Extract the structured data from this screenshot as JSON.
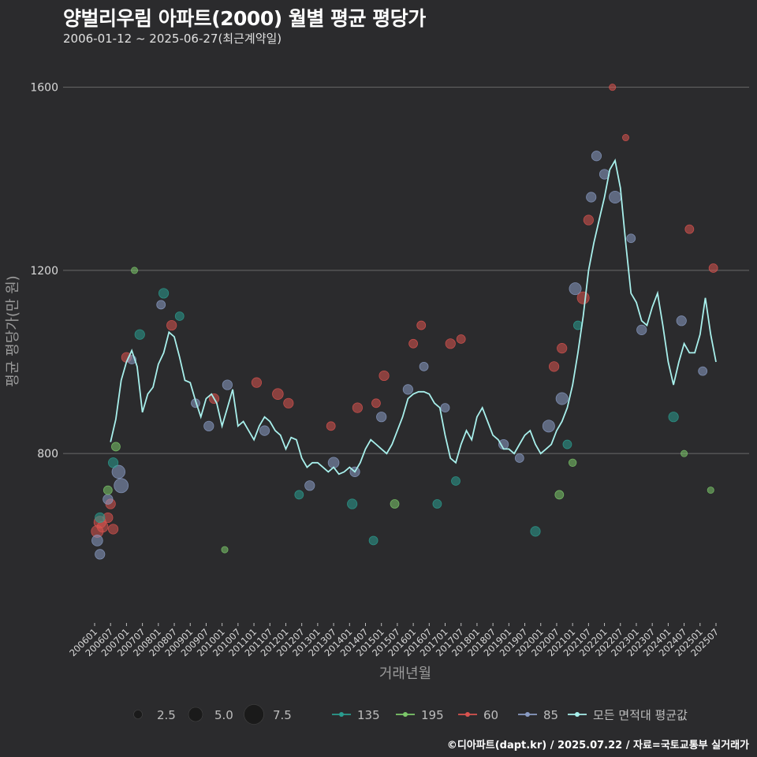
{
  "header": {
    "title": "양벌리우림 아파트(2000) 월별 평균 평당가",
    "subtitle": "2006-01-12 ~ 2025-06-27(최근계약일)"
  },
  "source": "©디아파트(dapt.kr) / 2025.07.22 / 자료=국토교통부 실거래가",
  "colors": {
    "background": "#2b2b2d",
    "grid": "#6a6a6a",
    "series_135": "#2a9d8f",
    "series_195": "#7cc86a",
    "series_60": "#d9534f",
    "series_85": "#8a9cc4",
    "series_all": "#a8f0ec"
  },
  "chart_data": {
    "type": "line",
    "xlabel": "거래년월",
    "ylabel": "평균 평당가(만 원)",
    "ylim": [
      430,
      1670
    ],
    "yticks": [
      800,
      1200,
      1600
    ],
    "x_start": "2006-01",
    "x_end": "2025-07",
    "xticks": [
      "200601",
      "200607",
      "200701",
      "200707",
      "200801",
      "200807",
      "200901",
      "200907",
      "201001",
      "201007",
      "201101",
      "201107",
      "201201",
      "201207",
      "201301",
      "201307",
      "201401",
      "201407",
      "201501",
      "201507",
      "201601",
      "201607",
      "201701",
      "201707",
      "201801",
      "201807",
      "201901",
      "201907",
      "202001",
      "202007",
      "202101",
      "202107",
      "202201",
      "202207",
      "202301",
      "202307",
      "202401",
      "202407",
      "202501",
      "202507"
    ],
    "size_legend": {
      "title": "",
      "values": [
        2.5,
        5.0,
        7.5
      ]
    },
    "series_legend": [
      "135",
      "195",
      "60",
      "85",
      "모든 면적대 평균값"
    ],
    "avg_line": [
      [
        "2006-07",
        825
      ],
      [
        "2006-09",
        875
      ],
      [
        "2006-11",
        960
      ],
      [
        "2007-01",
        1000
      ],
      [
        "2007-03",
        1025
      ],
      [
        "2007-05",
        990
      ],
      [
        "2007-07",
        890
      ],
      [
        "2007-09",
        930
      ],
      [
        "2007-11",
        945
      ],
      [
        "2008-01",
        995
      ],
      [
        "2008-03",
        1020
      ],
      [
        "2008-05",
        1065
      ],
      [
        "2008-07",
        1055
      ],
      [
        "2008-09",
        1010
      ],
      [
        "2008-11",
        960
      ],
      [
        "2009-01",
        955
      ],
      [
        "2009-03",
        915
      ],
      [
        "2009-05",
        880
      ],
      [
        "2009-07",
        920
      ],
      [
        "2009-09",
        930
      ],
      [
        "2009-11",
        910
      ],
      [
        "2010-01",
        860
      ],
      [
        "2010-03",
        900
      ],
      [
        "2010-05",
        940
      ],
      [
        "2010-07",
        860
      ],
      [
        "2010-09",
        870
      ],
      [
        "2010-11",
        850
      ],
      [
        "2011-01",
        830
      ],
      [
        "2011-03",
        860
      ],
      [
        "2011-05",
        880
      ],
      [
        "2011-07",
        870
      ],
      [
        "2011-09",
        850
      ],
      [
        "2011-11",
        840
      ],
      [
        "2012-01",
        810
      ],
      [
        "2012-03",
        835
      ],
      [
        "2012-05",
        830
      ],
      [
        "2012-07",
        790
      ],
      [
        "2012-09",
        770
      ],
      [
        "2012-11",
        780
      ],
      [
        "2013-01",
        780
      ],
      [
        "2013-03",
        770
      ],
      [
        "2013-05",
        760
      ],
      [
        "2013-07",
        770
      ],
      [
        "2013-09",
        755
      ],
      [
        "2013-11",
        760
      ],
      [
        "2014-01",
        770
      ],
      [
        "2014-03",
        760
      ],
      [
        "2014-05",
        780
      ],
      [
        "2014-07",
        810
      ],
      [
        "2014-09",
        830
      ],
      [
        "2014-11",
        820
      ],
      [
        "2015-01",
        810
      ],
      [
        "2015-03",
        800
      ],
      [
        "2015-05",
        820
      ],
      [
        "2015-07",
        850
      ],
      [
        "2015-09",
        880
      ],
      [
        "2015-11",
        920
      ],
      [
        "2016-01",
        930
      ],
      [
        "2016-03",
        935
      ],
      [
        "2016-05",
        935
      ],
      [
        "2016-07",
        930
      ],
      [
        "2016-09",
        910
      ],
      [
        "2016-11",
        900
      ],
      [
        "2017-01",
        840
      ],
      [
        "2017-03",
        790
      ],
      [
        "2017-05",
        780
      ],
      [
        "2017-07",
        820
      ],
      [
        "2017-09",
        850
      ],
      [
        "2017-11",
        830
      ],
      [
        "2018-01",
        880
      ],
      [
        "2018-03",
        900
      ],
      [
        "2018-05",
        870
      ],
      [
        "2018-07",
        840
      ],
      [
        "2018-09",
        830
      ],
      [
        "2018-11",
        810
      ],
      [
        "2019-01",
        810
      ],
      [
        "2019-03",
        800
      ],
      [
        "2019-05",
        820
      ],
      [
        "2019-07",
        840
      ],
      [
        "2019-09",
        850
      ],
      [
        "2019-11",
        820
      ],
      [
        "2020-01",
        800
      ],
      [
        "2020-03",
        810
      ],
      [
        "2020-05",
        820
      ],
      [
        "2020-07",
        850
      ],
      [
        "2020-09",
        870
      ],
      [
        "2020-11",
        900
      ],
      [
        "2021-01",
        950
      ],
      [
        "2021-03",
        1020
      ],
      [
        "2021-05",
        1100
      ],
      [
        "2021-07",
        1200
      ],
      [
        "2021-09",
        1260
      ],
      [
        "2021-11",
        1310
      ],
      [
        "2022-01",
        1360
      ],
      [
        "2022-03",
        1420
      ],
      [
        "2022-05",
        1440
      ],
      [
        "2022-07",
        1380
      ],
      [
        "2022-09",
        1260
      ],
      [
        "2022-11",
        1150
      ],
      [
        "2023-01",
        1130
      ],
      [
        "2023-03",
        1090
      ],
      [
        "2023-05",
        1080
      ],
      [
        "2023-07",
        1120
      ],
      [
        "2023-09",
        1150
      ],
      [
        "2023-11",
        1080
      ],
      [
        "2024-01",
        1000
      ],
      [
        "2024-03",
        950
      ],
      [
        "2024-05",
        1000
      ],
      [
        "2024-07",
        1040
      ],
      [
        "2024-09",
        1020
      ],
      [
        "2024-11",
        1020
      ],
      [
        "2025-01",
        1060
      ],
      [
        "2025-03",
        1140
      ],
      [
        "2025-05",
        1060
      ],
      [
        "2025-07",
        1000
      ]
    ],
    "points": [
      {
        "series": "60",
        "x": "2006-02",
        "y": 630,
        "size": 4
      },
      {
        "series": "60",
        "x": "2006-03",
        "y": 650,
        "size": 4
      },
      {
        "series": "60",
        "x": "2006-04",
        "y": 640,
        "size": 3.5
      },
      {
        "series": "60",
        "x": "2006-06",
        "y": 660,
        "size": 3
      },
      {
        "series": "60",
        "x": "2006-07",
        "y": 690,
        "size": 3
      },
      {
        "series": "60",
        "x": "2006-08",
        "y": 635,
        "size": 3
      },
      {
        "series": "60",
        "x": "2007-01",
        "y": 1010,
        "size": 3
      },
      {
        "series": "60",
        "x": "2008-06",
        "y": 1080,
        "size": 3
      },
      {
        "series": "60",
        "x": "2009-10",
        "y": 920,
        "size": 3
      },
      {
        "series": "60",
        "x": "2011-02",
        "y": 955,
        "size": 3
      },
      {
        "series": "60",
        "x": "2011-10",
        "y": 930,
        "size": 3.5
      },
      {
        "series": "60",
        "x": "2012-02",
        "y": 910,
        "size": 3
      },
      {
        "series": "60",
        "x": "2013-06",
        "y": 860,
        "size": 2.5
      },
      {
        "series": "60",
        "x": "2014-04",
        "y": 900,
        "size": 3
      },
      {
        "series": "60",
        "x": "2014-11",
        "y": 910,
        "size": 2.5
      },
      {
        "series": "60",
        "x": "2015-02",
        "y": 970,
        "size": 3
      },
      {
        "series": "60",
        "x": "2016-01",
        "y": 1040,
        "size": 2.5
      },
      {
        "series": "60",
        "x": "2016-04",
        "y": 1080,
        "size": 2.5
      },
      {
        "series": "60",
        "x": "2017-03",
        "y": 1040,
        "size": 3
      },
      {
        "series": "60",
        "x": "2017-07",
        "y": 1050,
        "size": 2.5
      },
      {
        "series": "60",
        "x": "2020-06",
        "y": 990,
        "size": 3
      },
      {
        "series": "60",
        "x": "2020-09",
        "y": 1030,
        "size": 3
      },
      {
        "series": "60",
        "x": "2021-05",
        "y": 1140,
        "size": 4
      },
      {
        "series": "60",
        "x": "2021-07",
        "y": 1310,
        "size": 3
      },
      {
        "series": "60",
        "x": "2022-04",
        "y": 1600,
        "size": 1.5
      },
      {
        "series": "60",
        "x": "2022-09",
        "y": 1490,
        "size": 1.5
      },
      {
        "series": "60",
        "x": "2024-09",
        "y": 1290,
        "size": 2.5
      },
      {
        "series": "60",
        "x": "2025-06",
        "y": 1205,
        "size": 2.5
      },
      {
        "series": "85",
        "x": "2006-02",
        "y": 610,
        "size": 3.5
      },
      {
        "series": "85",
        "x": "2006-03",
        "y": 580,
        "size": 3
      },
      {
        "series": "85",
        "x": "2006-06",
        "y": 700,
        "size": 3
      },
      {
        "series": "85",
        "x": "2006-10",
        "y": 760,
        "size": 4.5
      },
      {
        "series": "85",
        "x": "2006-11",
        "y": 730,
        "size": 5
      },
      {
        "series": "85",
        "x": "2007-03",
        "y": 1005,
        "size": 2.5
      },
      {
        "series": "85",
        "x": "2008-02",
        "y": 1125,
        "size": 2.5
      },
      {
        "series": "85",
        "x": "2009-03",
        "y": 910,
        "size": 2.5
      },
      {
        "series": "85",
        "x": "2009-08",
        "y": 860,
        "size": 3
      },
      {
        "series": "85",
        "x": "2010-03",
        "y": 950,
        "size": 3
      },
      {
        "series": "85",
        "x": "2011-05",
        "y": 850,
        "size": 3
      },
      {
        "series": "85",
        "x": "2012-10",
        "y": 730,
        "size": 3
      },
      {
        "series": "85",
        "x": "2013-07",
        "y": 780,
        "size": 3.5
      },
      {
        "series": "85",
        "x": "2014-03",
        "y": 760,
        "size": 3
      },
      {
        "series": "85",
        "x": "2015-01",
        "y": 880,
        "size": 3
      },
      {
        "series": "85",
        "x": "2015-11",
        "y": 940,
        "size": 3
      },
      {
        "series": "85",
        "x": "2016-05",
        "y": 990,
        "size": 2.5
      },
      {
        "series": "85",
        "x": "2017-01",
        "y": 900,
        "size": 2.5
      },
      {
        "series": "85",
        "x": "2018-11",
        "y": 820,
        "size": 3
      },
      {
        "series": "85",
        "x": "2019-05",
        "y": 790,
        "size": 2.5
      },
      {
        "series": "85",
        "x": "2020-04",
        "y": 860,
        "size": 4
      },
      {
        "series": "85",
        "x": "2020-09",
        "y": 920,
        "size": 4
      },
      {
        "series": "85",
        "x": "2021-02",
        "y": 1160,
        "size": 4
      },
      {
        "series": "85",
        "x": "2021-08",
        "y": 1360,
        "size": 3
      },
      {
        "series": "85",
        "x": "2021-10",
        "y": 1450,
        "size": 3
      },
      {
        "series": "85",
        "x": "2022-01",
        "y": 1410,
        "size": 3
      },
      {
        "series": "85",
        "x": "2022-05",
        "y": 1360,
        "size": 4
      },
      {
        "series": "85",
        "x": "2022-11",
        "y": 1270,
        "size": 2.5
      },
      {
        "series": "85",
        "x": "2023-03",
        "y": 1070,
        "size": 3
      },
      {
        "series": "85",
        "x": "2024-06",
        "y": 1090,
        "size": 3
      },
      {
        "series": "85",
        "x": "2025-02",
        "y": 980,
        "size": 2.5
      },
      {
        "series": "135",
        "x": "2006-03",
        "y": 660,
        "size": 3
      },
      {
        "series": "135",
        "x": "2006-08",
        "y": 780,
        "size": 3
      },
      {
        "series": "135",
        "x": "2007-06",
        "y": 1060,
        "size": 3
      },
      {
        "series": "135",
        "x": "2008-03",
        "y": 1150,
        "size": 3
      },
      {
        "series": "135",
        "x": "2008-09",
        "y": 1100,
        "size": 2.5
      },
      {
        "series": "135",
        "x": "2012-06",
        "y": 710,
        "size": 2.5
      },
      {
        "series": "135",
        "x": "2014-02",
        "y": 690,
        "size": 3
      },
      {
        "series": "135",
        "x": "2014-10",
        "y": 610,
        "size": 2.5
      },
      {
        "series": "135",
        "x": "2016-10",
        "y": 690,
        "size": 2.5
      },
      {
        "series": "135",
        "x": "2017-05",
        "y": 740,
        "size": 2.5
      },
      {
        "series": "135",
        "x": "2019-11",
        "y": 630,
        "size": 3
      },
      {
        "series": "135",
        "x": "2020-11",
        "y": 820,
        "size": 2.5
      },
      {
        "series": "135",
        "x": "2021-03",
        "y": 1080,
        "size": 2.5
      },
      {
        "series": "135",
        "x": "2024-03",
        "y": 880,
        "size": 3
      },
      {
        "series": "195",
        "x": "2006-06",
        "y": 720,
        "size": 2.5
      },
      {
        "series": "195",
        "x": "2006-09",
        "y": 815,
        "size": 2.5
      },
      {
        "series": "195",
        "x": "2007-04",
        "y": 1200,
        "size": 1.5
      },
      {
        "series": "195",
        "x": "2010-02",
        "y": 590,
        "size": 1.5
      },
      {
        "series": "195",
        "x": "2015-06",
        "y": 690,
        "size": 2.5
      },
      {
        "series": "195",
        "x": "2020-08",
        "y": 710,
        "size": 2.5
      },
      {
        "series": "195",
        "x": "2021-01",
        "y": 780,
        "size": 2
      },
      {
        "series": "195",
        "x": "2024-07",
        "y": 800,
        "size": 1.5
      },
      {
        "series": "195",
        "x": "2025-05",
        "y": 720,
        "size": 1.5
      }
    ]
  }
}
